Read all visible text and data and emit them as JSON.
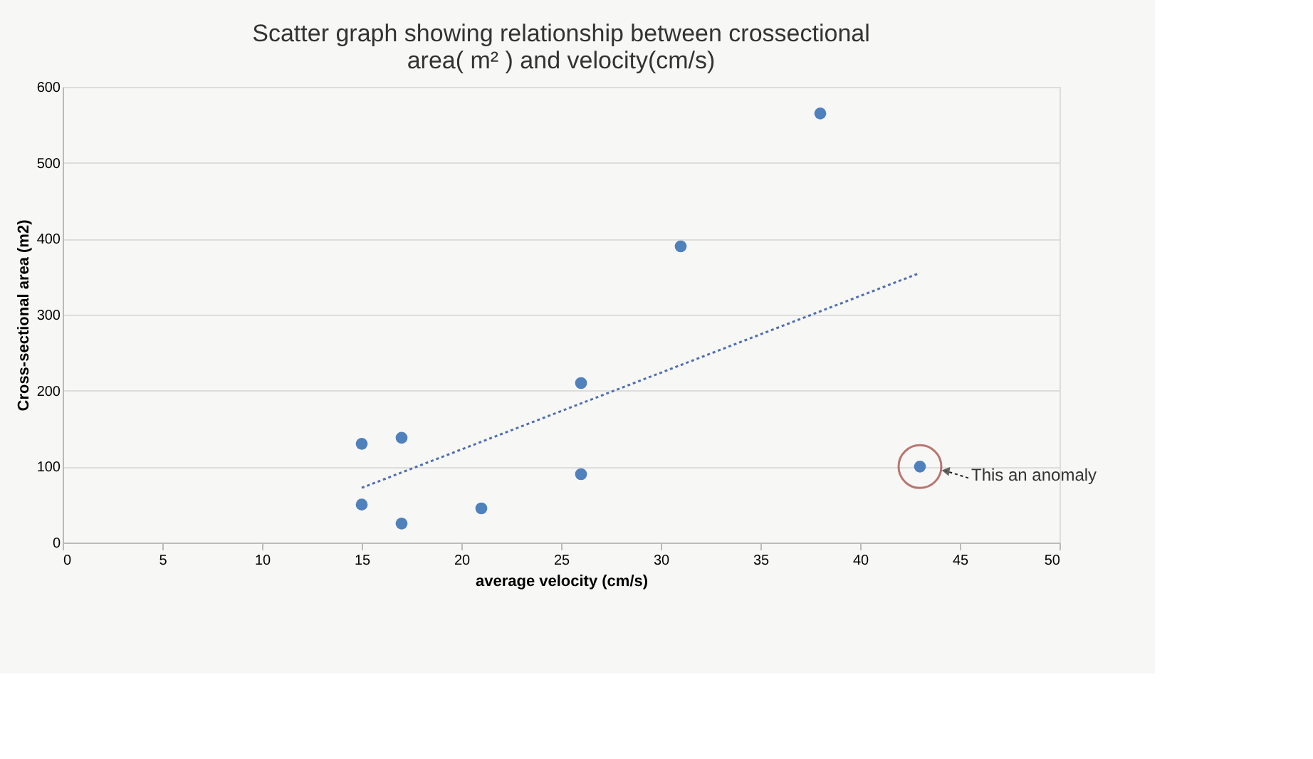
{
  "chart_data": {
    "type": "scatter",
    "title": "Scatter graph showing relationship between crossectional\narea( m² ) and velocity(cm/s)",
    "xlabel": "average velocity (cm/s)",
    "ylabel": "Cross-sectional area (m2)",
    "series": [
      {
        "color": "#4f81bd",
        "marker": "circle",
        "x": [
          15,
          15,
          17,
          17,
          21,
          26,
          26,
          31,
          38,
          43
        ],
        "values": [
          130,
          50,
          138,
          25,
          45,
          210,
          90,
          390,
          565,
          100
        ]
      },
      {
        "type": "line",
        "color": "#4f6fb0",
        "line_style": "dotted",
        "marker": "none",
        "x": [
          15,
          43
        ],
        "values": [
          72,
          355
        ]
      }
    ],
    "xlim": [
      0,
      50
    ],
    "xticks": [
      0,
      5,
      10,
      15,
      20,
      25,
      30,
      35,
      40,
      45,
      50
    ],
    "ylim": [
      0,
      600
    ],
    "yticks": [
      0,
      100,
      200,
      300,
      400,
      500,
      600
    ],
    "grid": "y",
    "annotations": [
      {
        "text": "This an anomaly",
        "x": 43,
        "y": 100
      }
    ]
  }
}
